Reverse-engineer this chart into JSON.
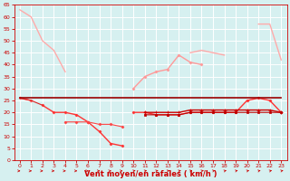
{
  "bg_color": "#d6f0f0",
  "grid_color": "#ffffff",
  "xlabel": "Vent moyen/en rafales ( km/h )",
  "xlabel_fontsize": 6,
  "xlabel_color": "#cc0000",
  "tick_color": "#cc0000",
  "tick_fontsize": 4.5,
  "ylim": [
    0,
    65
  ],
  "yticks": [
    0,
    5,
    10,
    15,
    20,
    25,
    30,
    35,
    40,
    45,
    50,
    55,
    60,
    65
  ],
  "xlim": [
    -0.5,
    23.5
  ],
  "xticks": [
    0,
    1,
    2,
    3,
    4,
    5,
    6,
    7,
    8,
    9,
    10,
    11,
    12,
    13,
    14,
    15,
    16,
    17,
    18,
    19,
    20,
    21,
    22,
    23
  ],
  "series": [
    {
      "y": [
        63,
        60,
        50,
        46,
        37,
        null,
        null,
        null,
        null,
        null,
        null,
        null,
        null,
        null,
        null,
        45,
        46,
        45,
        44,
        null,
        null,
        57,
        57,
        42
      ],
      "color": "#ffaaaa",
      "lw": 1.0,
      "marker": null,
      "ms": 0,
      "zorder": 2
    },
    {
      "y": [
        null,
        null,
        null,
        null,
        null,
        null,
        null,
        null,
        null,
        null,
        30,
        35,
        37,
        38,
        44,
        41,
        40,
        null,
        null,
        null,
        null,
        null,
        null,
        null
      ],
      "color": "#ff9999",
      "lw": 1.0,
      "marker": "D",
      "ms": 1.5,
      "zorder": 2
    },
    {
      "y": [
        26,
        25,
        null,
        null,
        null,
        null,
        null,
        null,
        null,
        null,
        null,
        null,
        null,
        null,
        null,
        null,
        null,
        null,
        null,
        null,
        null,
        null,
        null,
        null
      ],
      "color": "#ff5555",
      "lw": 1.0,
      "marker": "D",
      "ms": 1.5,
      "zorder": 3
    },
    {
      "y": [
        null,
        null,
        23,
        20,
        20,
        19,
        16,
        12,
        7,
        6,
        null,
        null,
        null,
        null,
        null,
        null,
        null,
        null,
        null,
        null,
        null,
        null,
        null,
        null
      ],
      "color": "#ff3333",
      "lw": 1.0,
      "marker": "D",
      "ms": 1.5,
      "zorder": 3
    },
    {
      "y": [
        null,
        null,
        null,
        null,
        null,
        null,
        null,
        null,
        null,
        null,
        20,
        20,
        19,
        19,
        19,
        20,
        20,
        20,
        20,
        20,
        25,
        26,
        25,
        20
      ],
      "color": "#ff3333",
      "lw": 1.0,
      "marker": "D",
      "ms": 1.5,
      "zorder": 3
    },
    {
      "y": [
        26,
        26,
        26,
        26,
        26,
        26,
        26,
        26,
        26,
        26,
        26,
        26,
        26,
        26,
        26,
        26,
        26,
        26,
        26,
        26,
        26,
        26,
        26,
        26
      ],
      "color": "#990000",
      "lw": 1.2,
      "marker": null,
      "ms": 0,
      "zorder": 4
    },
    {
      "y": [
        null,
        null,
        null,
        null,
        null,
        null,
        null,
        null,
        null,
        null,
        null,
        20,
        20,
        20,
        20,
        21,
        21,
        21,
        21,
        21,
        21,
        21,
        21,
        20
      ],
      "color": "#cc0000",
      "lw": 1.0,
      "marker": "+",
      "ms": 3,
      "zorder": 4
    },
    {
      "y": [
        null,
        null,
        null,
        null,
        null,
        null,
        null,
        null,
        null,
        null,
        null,
        19,
        19,
        19,
        19,
        20,
        20,
        20,
        20,
        20,
        20,
        20,
        20,
        20
      ],
      "color": "#bb0000",
      "lw": 0.8,
      "marker": "s",
      "ms": 1.5,
      "zorder": 4
    },
    {
      "y": [
        26,
        25,
        23,
        null,
        null,
        null,
        null,
        null,
        null,
        null,
        null,
        null,
        null,
        null,
        null,
        null,
        null,
        null,
        null,
        null,
        null,
        null,
        null,
        null
      ],
      "color": "#dd2222",
      "lw": 0.8,
      "marker": null,
      "ms": 0,
      "zorder": 3
    },
    {
      "y": [
        null,
        null,
        null,
        null,
        16,
        16,
        16,
        15,
        15,
        14,
        null,
        null,
        null,
        null,
        null,
        null,
        null,
        null,
        null,
        null,
        null,
        null,
        null,
        null
      ],
      "color": "#ff4444",
      "lw": 0.8,
      "marker": "D",
      "ms": 1.5,
      "zorder": 3
    }
  ]
}
